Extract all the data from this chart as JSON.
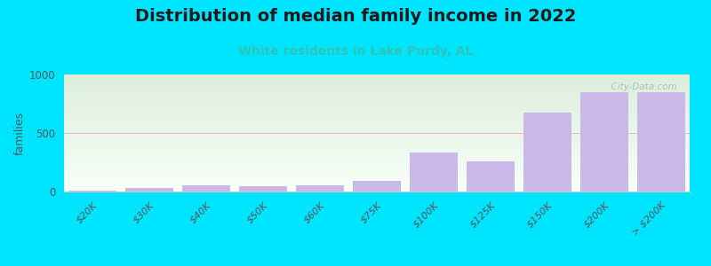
{
  "title": "Distribution of median family income in 2022",
  "subtitle": "White residents in Lake Purdy, AL",
  "categories": [
    "$20K",
    "$30K",
    "$40K",
    "$50K",
    "$60K",
    "$75K",
    "$100K",
    "$125K",
    "$150K",
    "$200K",
    "> $200K"
  ],
  "values": [
    8,
    28,
    55,
    42,
    52,
    90,
    335,
    260,
    675,
    845,
    845
  ],
  "bar_color": "#c9b8e8",
  "background_color": "#00e5ff",
  "ylabel": "families",
  "ylim": [
    0,
    1000
  ],
  "yticks": [
    0,
    500,
    1000
  ],
  "grid_color": "#f0b8c8",
  "title_fontsize": 14,
  "subtitle_fontsize": 10,
  "subtitle_color": "#2ec4b6",
  "watermark": "  City-Data.com",
  "grad_top": "#ddeedd",
  "grad_bottom": "#f8fff8"
}
